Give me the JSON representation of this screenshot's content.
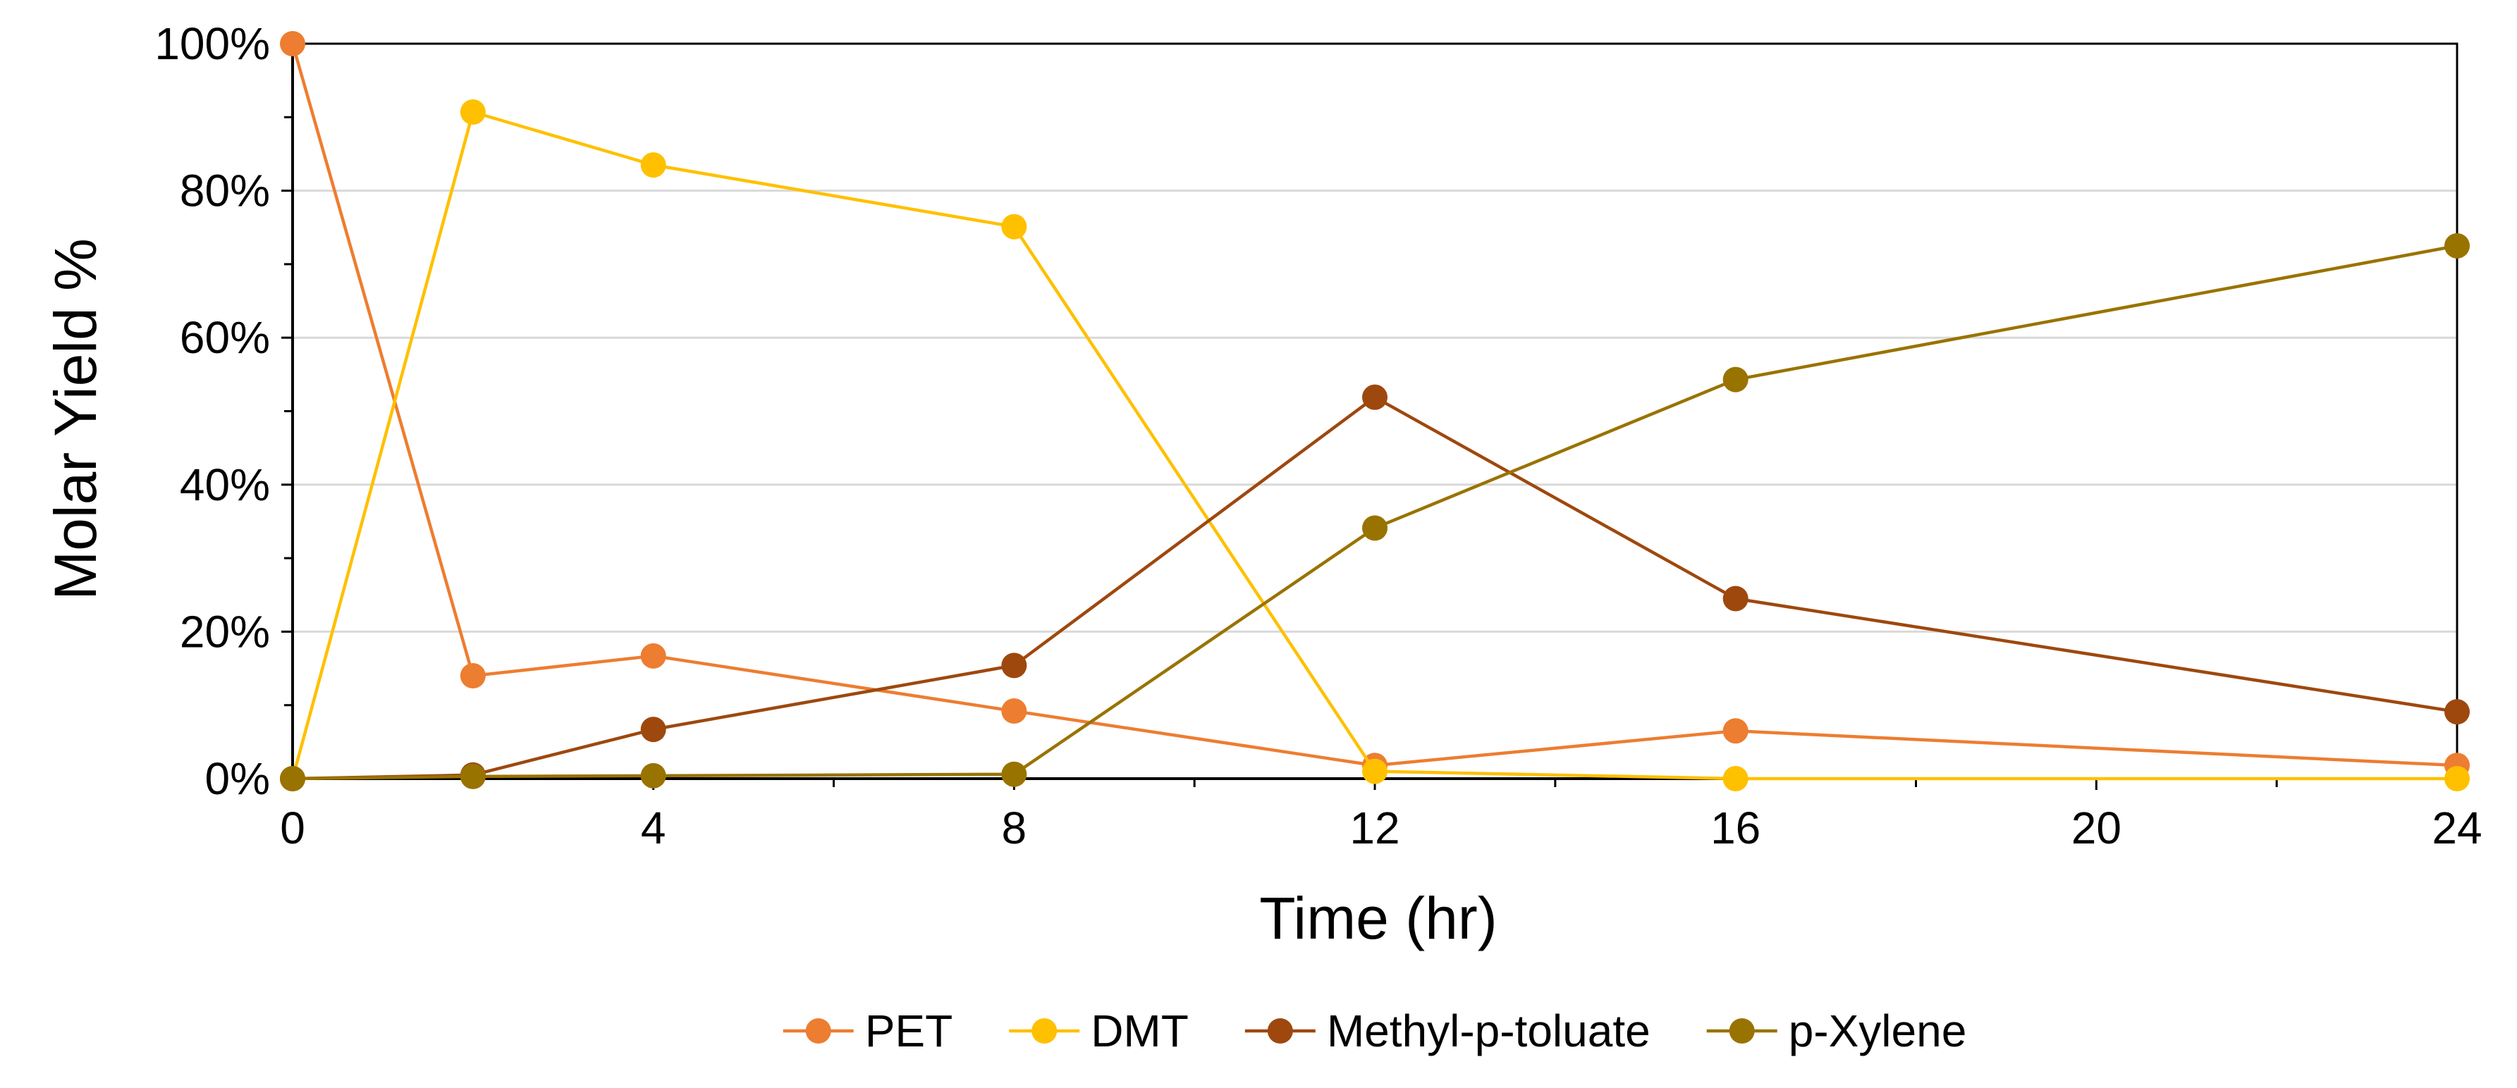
{
  "chart_data": {
    "type": "line",
    "title": "",
    "xlabel": "Time (hr)",
    "ylabel": "Molar Yield %",
    "xlim": [
      0,
      24
    ],
    "ylim": [
      0,
      1
    ],
    "x_ticks": [
      0,
      4,
      8,
      12,
      16,
      20,
      24
    ],
    "y_ticks": [
      0,
      0.2,
      0.4,
      0.6,
      0.8,
      1.0
    ],
    "y_tick_labels": [
      "0%",
      "20%",
      "40%",
      "60%",
      "80%",
      "100%"
    ],
    "grid": "horizontal",
    "legend_position": "bottom",
    "series": [
      {
        "name": "PET",
        "color": "#ED7D31",
        "points": [
          [
            0,
            1.0
          ],
          [
            2,
            0.14
          ],
          [
            4,
            0.167
          ],
          [
            8,
            0.092
          ],
          [
            12,
            0.018
          ],
          [
            16,
            0.065
          ],
          [
            24,
            0.018
          ]
        ]
      },
      {
        "name": "DMT",
        "color": "#FFC000",
        "points": [
          [
            0,
            0.0
          ],
          [
            2,
            0.907
          ],
          [
            4,
            0.835
          ],
          [
            8,
            0.751
          ],
          [
            12,
            0.01
          ],
          [
            16,
            0.0
          ],
          [
            24,
            0.0
          ]
        ]
      },
      {
        "name": "Methyl-p-toluate",
        "color": "#9E480E",
        "points": [
          [
            0,
            0.0
          ],
          [
            2,
            0.005
          ],
          [
            4,
            0.067
          ],
          [
            8,
            0.154
          ],
          [
            12,
            0.519
          ],
          [
            16,
            0.245
          ],
          [
            24,
            0.091
          ]
        ]
      },
      {
        "name": "p-Xylene",
        "color": "#997300",
        "points": [
          [
            0,
            0.0
          ],
          [
            2,
            0.003
          ],
          [
            4,
            0.004
          ],
          [
            8,
            0.006
          ],
          [
            12,
            0.341
          ],
          [
            16,
            0.543
          ],
          [
            24,
            0.725
          ]
        ]
      }
    ]
  }
}
